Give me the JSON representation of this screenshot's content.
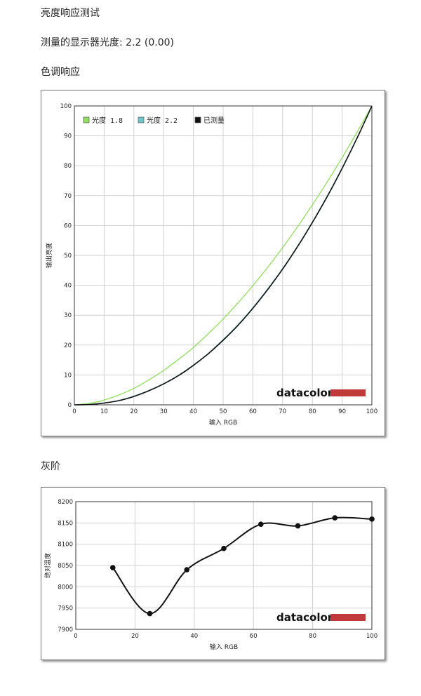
{
  "headings": {
    "brightness_test": "亮度响应测试",
    "measured_gamma": "测量的显示器光度:  2.2 (0.00)",
    "tone_response": "色调响应",
    "gray_scale": "灰阶"
  },
  "branding": {
    "logo_text": "datacolor",
    "logo_bar_color": "#c0393b"
  },
  "chart_data": [
    {
      "type": "line",
      "xlabel": "输入 RGB",
      "ylabel": "输出亮度",
      "xlim": [
        0,
        100
      ],
      "ylim": [
        0,
        100
      ],
      "xticks": [
        "0",
        "10",
        "20",
        "30",
        "40",
        "50",
        "60",
        "70",
        "80",
        "90",
        "100"
      ],
      "yticks": [
        "0",
        "10",
        "20",
        "30",
        "40",
        "50",
        "60",
        "70",
        "80",
        "90",
        "100"
      ],
      "grid": true,
      "legend_position": "top-left",
      "series": [
        {
          "name": "光度 1.8",
          "color": "#8fe05a",
          "x": [
            0,
            5,
            10,
            15,
            20,
            25,
            30,
            35,
            40,
            45,
            50,
            55,
            60,
            65,
            70,
            75,
            80,
            85,
            90,
            95,
            100
          ],
          "y": [
            0,
            0.5,
            1.6,
            3.3,
            5.5,
            8.3,
            11.5,
            15.2,
            19.2,
            23.8,
            28.7,
            34.1,
            39.9,
            46.0,
            52.6,
            59.6,
            66.9,
            74.6,
            82.7,
            91.2,
            100
          ]
        },
        {
          "name": "光度 2.2",
          "color": "#6cc8cc",
          "x": [
            0,
            5,
            10,
            15,
            20,
            25,
            30,
            35,
            40,
            45,
            50,
            55,
            60,
            65,
            70,
            75,
            80,
            85,
            90,
            95,
            100
          ],
          "y": [
            0,
            0.1,
            0.6,
            1.5,
            2.9,
            4.8,
            7.1,
            9.9,
            13.3,
            17.2,
            21.8,
            26.8,
            32.5,
            38.8,
            45.6,
            53.1,
            61.2,
            69.9,
            79.3,
            89.3,
            100
          ]
        },
        {
          "name": "已测量",
          "color": "#111111",
          "x": [
            0,
            5,
            10,
            15,
            20,
            25,
            30,
            35,
            40,
            45,
            50,
            55,
            60,
            65,
            70,
            75,
            80,
            85,
            90,
            95,
            100
          ],
          "y": [
            0,
            0.1,
            0.6,
            1.4,
            2.8,
            4.7,
            7.0,
            9.8,
            13.2,
            17.1,
            21.6,
            26.6,
            32.3,
            38.6,
            45.4,
            52.9,
            61.0,
            69.7,
            79.1,
            89.2,
            100
          ]
        }
      ]
    },
    {
      "type": "line",
      "xlabel": "输入 RGB",
      "ylabel": "绝对温度",
      "xlim": [
        0,
        100
      ],
      "ylim": [
        7900,
        8200
      ],
      "xticks": [
        "0",
        "20",
        "40",
        "60",
        "80",
        "100"
      ],
      "yticks": [
        "7900",
        "7950",
        "8000",
        "8050",
        "8100",
        "8150",
        "8200"
      ],
      "grid": true,
      "series": [
        {
          "color": "#111111",
          "x": [
            12.5,
            25,
            37.5,
            50,
            62.5,
            75,
            87.5,
            100
          ],
          "y": [
            8045,
            7937,
            8040,
            8090,
            8147,
            8143,
            8162,
            8159
          ]
        }
      ]
    }
  ]
}
